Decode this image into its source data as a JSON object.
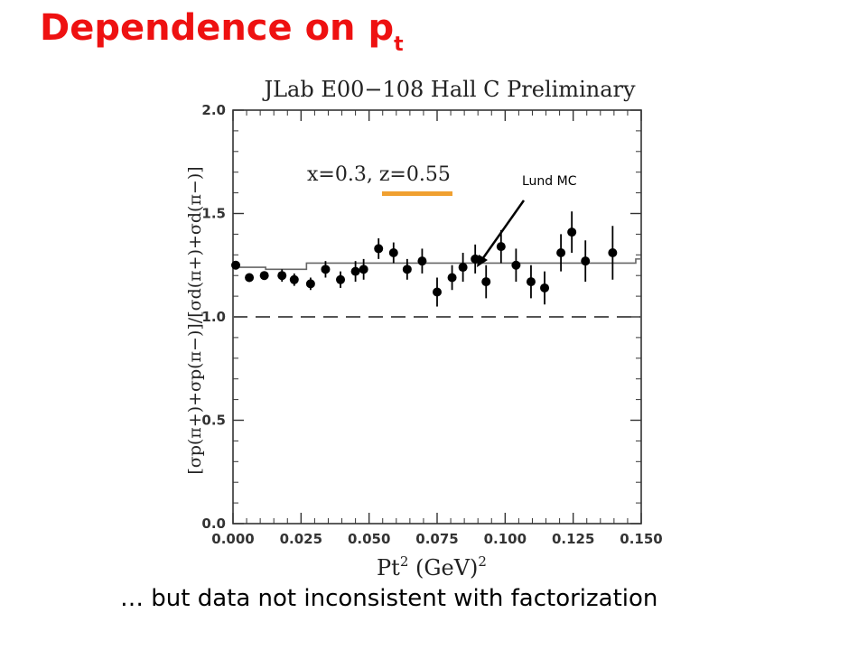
{
  "slide": {
    "title_main": "Dependence on p",
    "title_sub": "t",
    "caption": "… but data not inconsistent with factorization",
    "annotation": "Lund MC",
    "accent_color": "#ee1111",
    "marker_color": "#f0a030"
  },
  "chart_data": {
    "type": "scatter",
    "title": "JLab E00−108 Hall C Preliminary",
    "kinematics_label": "x=0.3,  z=0.55",
    "xlabel_main": "Pt",
    "xlabel_sup": "2",
    "xlabel_rest": "  (GeV)",
    "xlabel_sup2": "2",
    "ylabel": "[σp(π+)+σp(π−)]/[σd(π+)+σd(π−)]",
    "xlim": [
      0,
      0.15
    ],
    "ylim": [
      0,
      2.0
    ],
    "xticks": [
      "0.000",
      "0.025",
      "0.050",
      "0.075",
      "0.100",
      "0.125",
      "0.150"
    ],
    "yticks": [
      "0.0",
      "0.5",
      "1.0",
      "1.5",
      "2.0"
    ],
    "series": [
      {
        "x": [
          0.001,
          0.006,
          0.0115,
          0.018,
          0.0225,
          0.0285,
          0.034,
          0.0395,
          0.045,
          0.048,
          0.0535,
          0.059,
          0.064,
          0.0695,
          0.075,
          0.0805,
          0.0845,
          0.089,
          0.093,
          0.0985,
          0.104,
          0.1095,
          0.1145,
          0.1205,
          0.1245,
          0.1295,
          0.1395
        ],
        "y": [
          1.25,
          1.19,
          1.2,
          1.2,
          1.18,
          1.16,
          1.23,
          1.18,
          1.22,
          1.23,
          1.33,
          1.31,
          1.23,
          1.27,
          1.12,
          1.19,
          1.24,
          1.28,
          1.17,
          1.34,
          1.25,
          1.17,
          1.14,
          1.31,
          1.41,
          1.27,
          1.31
        ],
        "err": [
          0.02,
          0.02,
          0.02,
          0.03,
          0.03,
          0.03,
          0.04,
          0.04,
          0.05,
          0.05,
          0.05,
          0.05,
          0.05,
          0.06,
          0.07,
          0.06,
          0.07,
          0.07,
          0.08,
          0.08,
          0.08,
          0.08,
          0.08,
          0.09,
          0.1,
          0.1,
          0.13
        ]
      }
    ],
    "lund_mc_steps": [
      [
        0.0,
        1.24
      ],
      [
        0.012,
        1.24
      ],
      [
        0.012,
        1.23
      ],
      [
        0.027,
        1.23
      ],
      [
        0.027,
        1.26
      ],
      [
        0.138,
        1.26
      ],
      [
        0.138,
        1.26
      ],
      [
        0.148,
        1.26
      ],
      [
        0.148,
        1.28
      ],
      [
        0.15,
        1.28
      ]
    ],
    "reference_line": 1.0,
    "grid": false
  }
}
